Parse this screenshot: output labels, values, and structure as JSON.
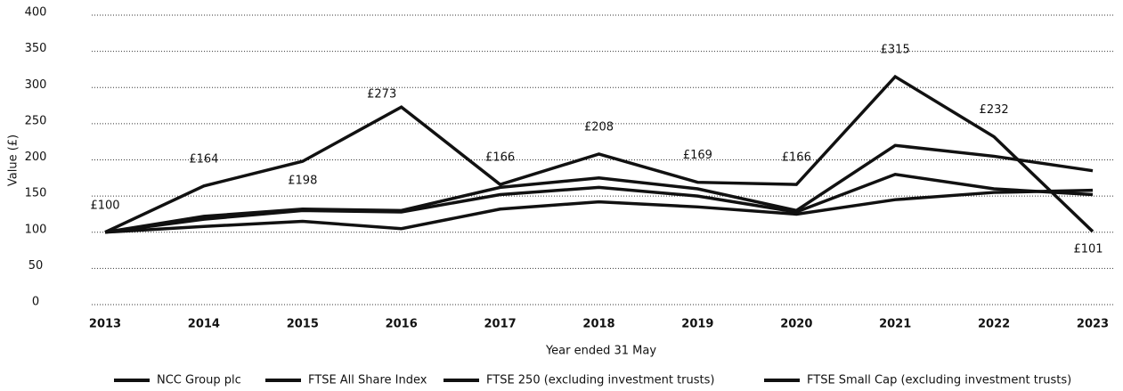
{
  "chart_data": {
    "type": "line",
    "x_label": "Year ended 31 May",
    "y_label": "Value (£)",
    "categories": [
      "2013",
      "2014",
      "2015",
      "2016",
      "2017",
      "2018",
      "2019",
      "2020",
      "2021",
      "2022",
      "2023"
    ],
    "series": [
      {
        "name": "NCC Group plc",
        "color": "#111111",
        "values": [
          100,
          164,
          198,
          273,
          166,
          208,
          169,
          166,
          315,
          232,
          101
        ],
        "value_labels": [
          "£100",
          "£164",
          "£198",
          "£273",
          "£166",
          "£208",
          "£169",
          "£166",
          "£315",
          "£232",
          "£101"
        ]
      },
      {
        "name": "FTSE All Share Index",
        "color": "#111111",
        "values": [
          100,
          118,
          130,
          128,
          152,
          162,
          150,
          128,
          180,
          160,
          152
        ]
      },
      {
        "name": "FTSE 250 (excluding investment trusts)",
        "color": "#111111",
        "values": [
          100,
          122,
          132,
          130,
          162,
          175,
          160,
          130,
          220,
          205,
          185
        ]
      },
      {
        "name": "FTSE Small Cap (excluding investment trusts)",
        "color": "#111111",
        "values": [
          100,
          108,
          115,
          105,
          132,
          142,
          135,
          125,
          145,
          155,
          158
        ]
      }
    ],
    "ylim": [
      0,
      400
    ],
    "yticks": [
      0,
      50,
      100,
      150,
      200,
      250,
      300,
      350,
      400
    ],
    "grid": true,
    "legend": "bottom"
  }
}
